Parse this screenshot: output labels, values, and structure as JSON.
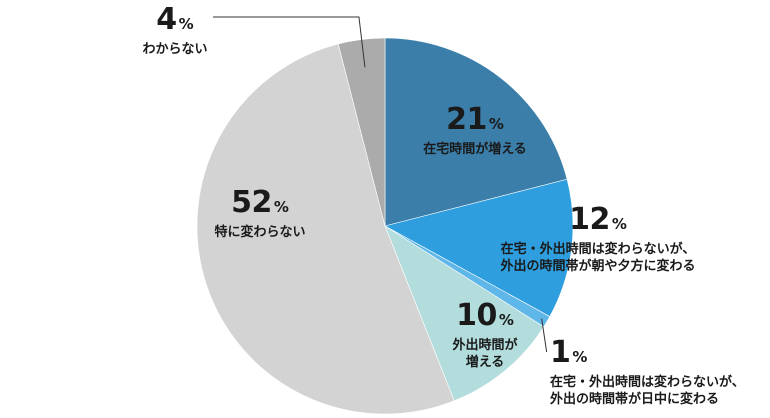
{
  "chart_data": {
    "type": "pie",
    "start": "top",
    "direction": "clockwise",
    "slices": [
      {
        "value": 21,
        "label_lines": [
          "在宅時間が増える"
        ],
        "color": "#3a7ea9"
      },
      {
        "value": 12,
        "label_lines": [
          "在宅・外出時間は変わらないが、",
          "外出の時間帯が朝や夕方に変わる"
        ],
        "color": "#2e9ede"
      },
      {
        "value": 1,
        "label_lines": [
          "在宅・外出時間は変わらないが、",
          "外出の時間帯が日中に変わる"
        ],
        "color": "#5fb6e8"
      },
      {
        "value": 10,
        "label_lines": [
          "外出時間が",
          "増える"
        ],
        "color": "#b3dcdd"
      },
      {
        "value": 52,
        "label_lines": [
          "特に変わらない"
        ],
        "color": "#d3d3d3"
      },
      {
        "value": 4,
        "label_lines": [
          "わからない"
        ],
        "color": "#ababab"
      }
    ],
    "unit": "%"
  }
}
